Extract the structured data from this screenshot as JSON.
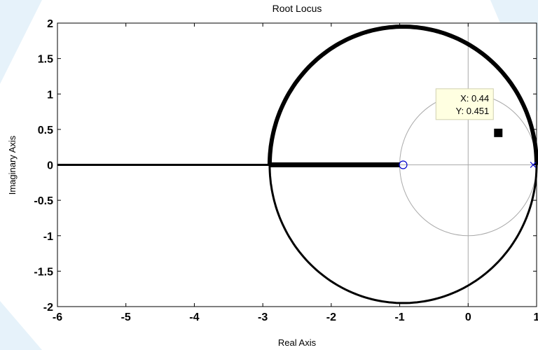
{
  "chart_data": {
    "type": "line",
    "title": "Root Locus",
    "xlabel": "Real Axis",
    "ylabel": "Imaginary Axis",
    "xlim": [
      -6,
      1
    ],
    "ylim": [
      -2,
      2
    ],
    "xticks": [
      "-6",
      "-5",
      "-4",
      "-3",
      "-2",
      "-1",
      "0",
      "1"
    ],
    "yticks": [
      "2",
      "1.5",
      "1",
      "0.5",
      "0",
      "-0.5",
      "-1",
      "-1.5",
      "-2"
    ],
    "grid": "unit circle",
    "locus": {
      "break_in_point": -2.9,
      "circle_center": [
        -0.95,
        0
      ],
      "circle_radius": 1.95,
      "real_axis_segments": [
        [
          -6,
          -2.9
        ],
        [
          -2.9,
          -1
        ]
      ]
    },
    "poles": [
      [
        0.95,
        0
      ]
    ],
    "zeros": [
      [
        -0.95,
        0
      ]
    ],
    "datatip": {
      "x_label": "X: 0.44",
      "y_label": "Y: 0.451",
      "x": 0.44,
      "y": 0.451
    },
    "colors": {
      "locus": "#000000",
      "grid_circle": "#aaaaaa",
      "zero_marker": "#0000cc",
      "pole_marker": "#0000cc",
      "datatip_bg": "#ffffe1"
    }
  }
}
